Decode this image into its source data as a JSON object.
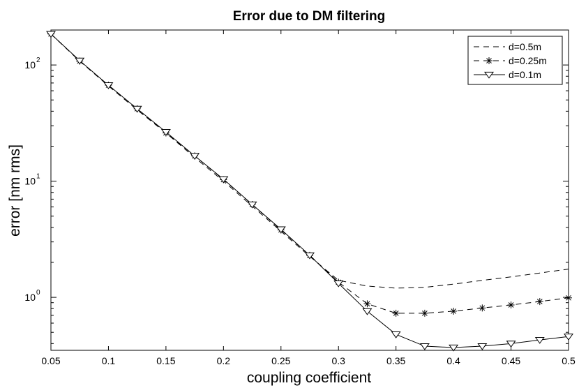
{
  "chart_data": {
    "type": "line",
    "title": "Error due to DM filtering",
    "xlabel": "coupling coefficient",
    "ylabel": "error [nm rms]",
    "xlim": [
      0.05,
      0.5
    ],
    "ylim": [
      0.35,
      200
    ],
    "yscale": "log",
    "x_ticks": [
      "0.05",
      "0.1",
      "0.15",
      "0.2",
      "0.25",
      "0.3",
      "0.35",
      "0.4",
      "0.45",
      "0.5"
    ],
    "y_ticks": [
      {
        "base": "10",
        "exp": "0"
      },
      {
        "base": "10",
        "exp": "1"
      },
      {
        "base": "10",
        "exp": "2"
      }
    ],
    "grid": false,
    "legend_position": "top-right",
    "x": [
      0.05,
      0.075,
      0.1,
      0.125,
      0.15,
      0.175,
      0.2,
      0.225,
      0.25,
      0.275,
      0.3,
      0.325,
      0.35,
      0.375,
      0.4,
      0.425,
      0.45,
      0.475,
      0.5
    ],
    "series": [
      {
        "name": "d=0.5m",
        "line": "dashed",
        "marker": "none",
        "values": [
          185,
          108,
          66,
          41,
          26,
          16,
          10,
          6.1,
          3.7,
          2.25,
          1.4,
          1.25,
          1.2,
          1.22,
          1.3,
          1.4,
          1.5,
          1.62,
          1.75
        ]
      },
      {
        "name": "d=0.25m",
        "line": "dashed",
        "marker": "asterisk",
        "values": [
          185,
          108,
          67,
          42,
          26,
          16.5,
          10.3,
          6.3,
          3.8,
          2.3,
          1.35,
          0.88,
          0.73,
          0.73,
          0.76,
          0.81,
          0.86,
          0.92,
          0.99
        ]
      },
      {
        "name": "d=0.1m",
        "line": "solid",
        "marker": "triangle-down",
        "values": [
          185,
          109,
          67,
          42,
          26.5,
          16.5,
          10.4,
          6.3,
          3.85,
          2.3,
          1.32,
          0.76,
          0.48,
          0.38,
          0.37,
          0.38,
          0.4,
          0.43,
          0.46
        ]
      }
    ]
  }
}
